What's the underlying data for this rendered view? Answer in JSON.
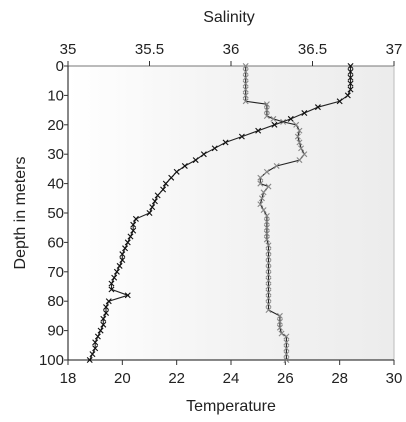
{
  "chart_data": {
    "type": "line",
    "top_axis_label": "Salinity",
    "bottom_axis_label": "Temperature",
    "ylabel": "Depth in meters",
    "salinity_range": [
      35,
      37
    ],
    "salinity_ticks": [
      "35",
      "35.5",
      "36",
      "36.5",
      "37"
    ],
    "temperature_range": [
      18,
      30
    ],
    "temperature_ticks": [
      "18",
      "20",
      "22",
      "24",
      "26",
      "28",
      "30"
    ],
    "depth_range": [
      0,
      100
    ],
    "depth_ticks": [
      "0",
      "10",
      "20",
      "30",
      "40",
      "50",
      "60",
      "70",
      "80",
      "90",
      "100"
    ],
    "series": [
      {
        "axis": "salinity",
        "values": [
          [
            36.09,
            0
          ],
          [
            36.09,
            2
          ],
          [
            36.09,
            4
          ],
          [
            36.09,
            6
          ],
          [
            36.09,
            8
          ],
          [
            36.09,
            10
          ],
          [
            36.09,
            12
          ],
          [
            36.22,
            13
          ],
          [
            36.22,
            15
          ],
          [
            36.22,
            17
          ],
          [
            36.26,
            18
          ],
          [
            36.32,
            19
          ],
          [
            36.4,
            20
          ],
          [
            36.42,
            22
          ],
          [
            36.41,
            24
          ],
          [
            36.42,
            26
          ],
          [
            36.43,
            28
          ],
          [
            36.45,
            30
          ],
          [
            36.42,
            32
          ],
          [
            36.28,
            34
          ],
          [
            36.22,
            36
          ],
          [
            36.18,
            38
          ],
          [
            36.18,
            40
          ],
          [
            36.23,
            41
          ],
          [
            36.2,
            43
          ],
          [
            36.19,
            45
          ],
          [
            36.18,
            47
          ],
          [
            36.2,
            49
          ],
          [
            36.22,
            51
          ],
          [
            36.22,
            53
          ],
          [
            36.22,
            55
          ],
          [
            36.22,
            57
          ],
          [
            36.22,
            59
          ],
          [
            36.23,
            61
          ],
          [
            36.23,
            63
          ],
          [
            36.23,
            65
          ],
          [
            36.23,
            67
          ],
          [
            36.23,
            69
          ],
          [
            36.23,
            71
          ],
          [
            36.23,
            73
          ],
          [
            36.23,
            75
          ],
          [
            36.23,
            77
          ],
          [
            36.23,
            79
          ],
          [
            36.23,
            81
          ],
          [
            36.23,
            83
          ],
          [
            36.3,
            85
          ],
          [
            36.3,
            87
          ],
          [
            36.3,
            89
          ],
          [
            36.31,
            91
          ],
          [
            36.34,
            92
          ],
          [
            36.34,
            94
          ],
          [
            36.34,
            96
          ],
          [
            36.34,
            98
          ],
          [
            36.34,
            100
          ]
        ]
      },
      {
        "axis": "temperature",
        "values": [
          [
            28.4,
            0
          ],
          [
            28.4,
            2
          ],
          [
            28.4,
            4
          ],
          [
            28.4,
            6
          ],
          [
            28.4,
            8
          ],
          [
            28.3,
            10
          ],
          [
            28.0,
            12
          ],
          [
            27.2,
            14
          ],
          [
            26.7,
            16
          ],
          [
            26.2,
            18
          ],
          [
            25.6,
            20
          ],
          [
            25.0,
            22
          ],
          [
            24.4,
            24
          ],
          [
            23.8,
            26
          ],
          [
            23.4,
            28
          ],
          [
            23.0,
            30
          ],
          [
            22.7,
            32
          ],
          [
            22.3,
            34
          ],
          [
            22.0,
            36
          ],
          [
            21.8,
            38
          ],
          [
            21.6,
            40
          ],
          [
            21.5,
            42
          ],
          [
            21.3,
            44
          ],
          [
            21.2,
            46
          ],
          [
            21.1,
            48
          ],
          [
            21.0,
            50
          ],
          [
            20.5,
            52
          ],
          [
            20.4,
            54
          ],
          [
            20.4,
            56
          ],
          [
            20.3,
            58
          ],
          [
            20.2,
            60
          ],
          [
            20.1,
            62
          ],
          [
            20.0,
            64
          ],
          [
            20.0,
            66
          ],
          [
            19.9,
            68
          ],
          [
            19.8,
            70
          ],
          [
            19.7,
            72
          ],
          [
            19.6,
            74
          ],
          [
            19.6,
            76
          ],
          [
            20.2,
            78
          ],
          [
            19.5,
            80
          ],
          [
            19.4,
            82
          ],
          [
            19.4,
            84
          ],
          [
            19.3,
            86
          ],
          [
            19.3,
            88
          ],
          [
            19.2,
            90
          ],
          [
            19.1,
            92
          ],
          [
            19.0,
            94
          ],
          [
            19.0,
            96
          ],
          [
            18.9,
            98
          ],
          [
            18.8,
            100
          ]
        ]
      }
    ],
    "grid": false
  }
}
